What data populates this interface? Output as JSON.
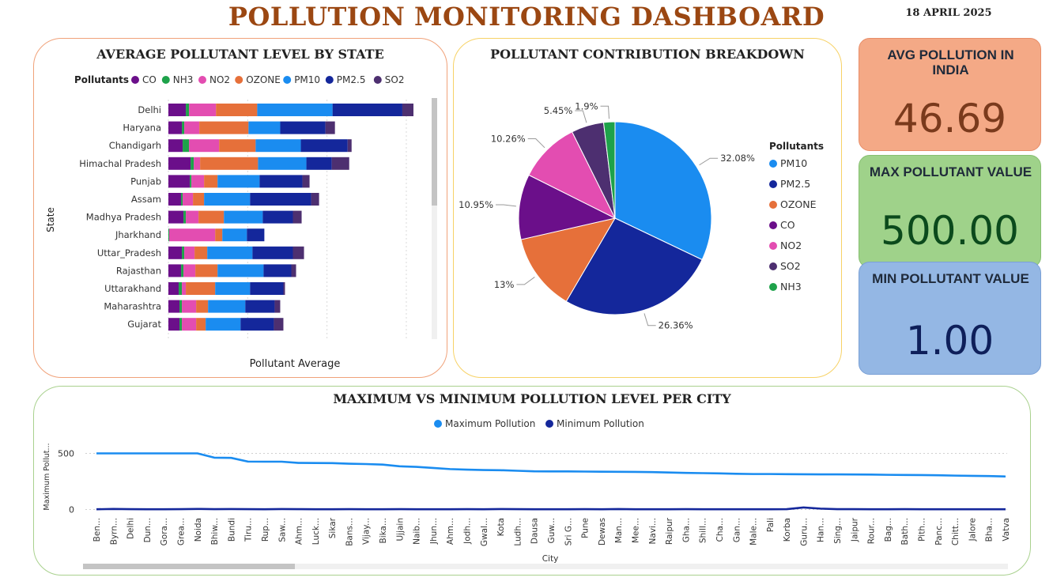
{
  "header": {
    "title": "POLLUTION MONITORING DASHBOARD",
    "date": "18 APRIL 2025"
  },
  "colors": {
    "CO": "#6b0f8a",
    "NH3": "#1ea24a",
    "NO2": "#e34db1",
    "OZONE": "#e6703a",
    "PM10": "#1a8cf0",
    "PM2.5": "#14279b",
    "SO2": "#4d2f70",
    "max_line": "#1a8cf0",
    "min_line": "#14279b"
  },
  "kpi": {
    "avg": {
      "label": "AVG POLLUTION IN INDIA",
      "value": "46.69",
      "color": "#7a3a1c"
    },
    "max": {
      "label": "MAX POLLUTANT VALUE",
      "value": "500.00",
      "color": "#0b4a1c"
    },
    "min": {
      "label": "MIN POLLUTANT VALUE",
      "value": "1.00",
      "color": "#0e1f5a"
    }
  },
  "chart_data": [
    {
      "type": "bar",
      "orientation": "horizontal-stacked",
      "title": "AVERAGE POLLUTANT LEVEL BY STATE",
      "xlabel": "Pollutant Average",
      "ylabel": "State",
      "legend_title": "Pollutants",
      "legend_position": "top",
      "categories": [
        "Delhi",
        "Haryana",
        "Chandigarh",
        "Himachal Pradesh",
        "Punjab",
        "Assam",
        "Madhya Pradesh",
        "Jharkhand",
        "Uttar_Pradesh",
        "Rajasthan",
        "Uttarakhand",
        "Maharashtra",
        "Gujarat"
      ],
      "series": [
        {
          "name": "CO",
          "values": [
            22,
            17,
            18,
            28,
            27,
            16,
            19,
            0,
            17,
            16,
            13,
            14,
            14
          ]
        },
        {
          "name": "NH3",
          "values": [
            4,
            3,
            8,
            4,
            2,
            2,
            3,
            1,
            3,
            3,
            4,
            3,
            3
          ]
        },
        {
          "name": "NO2",
          "values": [
            34,
            19,
            38,
            8,
            16,
            13,
            16,
            58,
            13,
            15,
            5,
            18,
            18
          ]
        },
        {
          "name": "OZONE",
          "values": [
            52,
            62,
            46,
            73,
            17,
            14,
            32,
            9,
            16,
            28,
            37,
            15,
            12
          ]
        },
        {
          "name": "PM10",
          "values": [
            95,
            40,
            57,
            61,
            53,
            58,
            49,
            31,
            57,
            58,
            44,
            47,
            44
          ]
        },
        {
          "name": "PM2.5",
          "values": [
            88,
            57,
            59,
            32,
            54,
            77,
            38,
            22,
            51,
            35,
            42,
            37,
            42
          ]
        },
        {
          "name": "SO2",
          "values": [
            14,
            12,
            5,
            22,
            9,
            10,
            11,
            0,
            14,
            6,
            2,
            7,
            12
          ]
        }
      ]
    },
    {
      "type": "pie",
      "title": "POLLUTANT CONTRIBUTION BREAKDOWN",
      "legend_title": "Pollutants",
      "legend_position": "right",
      "slices": [
        {
          "name": "PM10",
          "value": 32.08,
          "label": "32.08%"
        },
        {
          "name": "PM2.5",
          "value": 26.36,
          "label": "26.36%"
        },
        {
          "name": "OZONE",
          "value": 13.0,
          "label": "13%"
        },
        {
          "name": "CO",
          "value": 10.95,
          "label": "10.95%"
        },
        {
          "name": "NO2",
          "value": 10.26,
          "label": "10.26%"
        },
        {
          "name": "SO2",
          "value": 5.45,
          "label": "5.45%"
        },
        {
          "name": "NH3",
          "value": 1.9,
          "label": "1.9%"
        }
      ]
    },
    {
      "type": "line",
      "title": "MAXIMUM VS MINIMUM POLLUTION LEVEL PER CITY",
      "xlabel": "City",
      "ylabel": "Maximum Pollut...",
      "ylim": [
        0,
        500
      ],
      "yticks": [
        0,
        500
      ],
      "grid": true,
      "legend_position": "top",
      "x": [
        "Ben...",
        "Byrn...",
        "Delhi",
        "Dun...",
        "Gora...",
        "Grea...",
        "Noida",
        "Bhiw...",
        "Bundi",
        "Tiru...",
        "Rup...",
        "Saw...",
        "Ahm...",
        "Luck...",
        "Sikar",
        "Bans...",
        "Vijay...",
        "Bika...",
        "Ujjain",
        "Naib...",
        "Jhun...",
        "Ahm...",
        "Jodh...",
        "Gwal...",
        "Kota",
        "Ludh...",
        "Dausa",
        "Guw...",
        "Sri G...",
        "Pune",
        "Dewas",
        "Man...",
        "Mee...",
        "Navi...",
        "Raipur",
        "Gha...",
        "Shill...",
        "Cha...",
        "Gan...",
        "Male...",
        "Pali",
        "Korba",
        "Guru...",
        "Han...",
        "Sing...",
        "Jaipur",
        "Rour...",
        "Bag...",
        "Bath...",
        "Pith...",
        "Panc...",
        "Chitt...",
        "Jalore",
        "Bha...",
        "Vatva"
      ],
      "series": [
        {
          "name": "Maximum Pollution",
          "values": [
            500,
            500,
            500,
            500,
            500,
            500,
            500,
            462,
            460,
            427,
            426,
            426,
            415,
            414,
            413,
            408,
            405,
            400,
            385,
            380,
            370,
            360,
            355,
            352,
            350,
            345,
            340,
            339,
            339,
            338,
            337,
            336,
            335,
            333,
            330,
            326,
            324,
            322,
            318,
            316,
            316,
            315,
            314,
            313,
            313,
            312,
            311,
            309,
            308,
            307,
            305,
            302,
            300,
            298,
            294
          ]
        },
        {
          "name": "Minimum Pollution",
          "values": [
            2,
            5,
            3,
            2,
            2,
            3,
            5,
            3,
            4,
            3,
            2,
            4,
            3,
            2,
            2,
            3,
            2,
            2,
            3,
            2,
            2,
            2,
            3,
            2,
            4,
            3,
            2,
            2,
            2,
            3,
            2,
            4,
            2,
            2,
            2,
            3,
            2,
            2,
            2,
            2,
            2,
            3,
            18,
            8,
            3,
            3,
            2,
            2,
            3,
            2,
            2,
            2,
            2,
            2,
            2
          ]
        }
      ]
    }
  ]
}
